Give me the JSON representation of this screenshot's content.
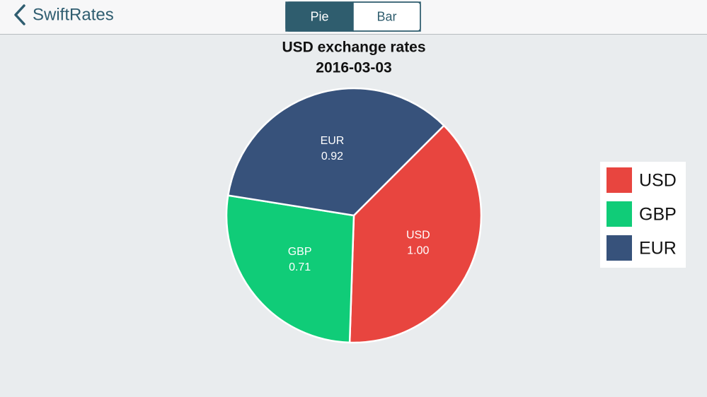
{
  "nav": {
    "back": "SwiftRates",
    "tabs": [
      "Pie",
      "Bar"
    ],
    "selected_tab": "Pie"
  },
  "chart_data": {
    "type": "pie",
    "title": "USD exchange rates",
    "subtitle": "2016-03-03",
    "categories": [
      "USD",
      "GBP",
      "EUR"
    ],
    "values": [
      1,
      0.71,
      0.92
    ],
    "value_labels": [
      "1.00",
      "0.71",
      "0.92"
    ],
    "colors": [
      "#e8453f",
      "#10cc78",
      "#37527b"
    ],
    "legend": "right"
  }
}
